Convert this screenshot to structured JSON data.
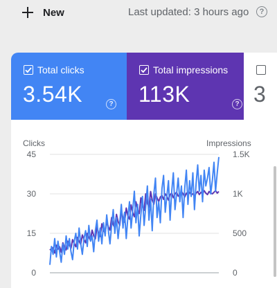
{
  "toolbar": {
    "new_label": "New",
    "last_updated": "Last updated: 3 hours ago"
  },
  "metrics": {
    "clicks": {
      "label": "Total clicks",
      "value": "3.54K",
      "color": "#4285f4",
      "checked": true
    },
    "impressions": {
      "label": "Total impressions",
      "value": "113K",
      "color": "#5e35b1",
      "checked": true
    },
    "third": {
      "value": "3",
      "checked": false
    }
  },
  "chart_data": {
    "type": "line",
    "left_axis": {
      "label": "Clicks",
      "ticks": [
        "45",
        "30",
        "15",
        "0"
      ],
      "range": [
        0,
        45
      ]
    },
    "right_axis": {
      "label": "Impressions",
      "ticks": [
        "1.5K",
        "1K",
        "500",
        "0"
      ],
      "range": [
        0,
        1500
      ]
    },
    "series": [
      {
        "color": "#4285f4",
        "axis": "left",
        "values": [
          3,
          10,
          7,
          13,
          6,
          12,
          8,
          4,
          11,
          7,
          14,
          9,
          13,
          8,
          5,
          12,
          15,
          9,
          17,
          11,
          7,
          13,
          16,
          10,
          18,
          12,
          14,
          8,
          16,
          20,
          12,
          17,
          11,
          19,
          14,
          22,
          16,
          11,
          18,
          24,
          15,
          21,
          13,
          19,
          26,
          17,
          23,
          13,
          21,
          27,
          17,
          24,
          31,
          19,
          26,
          14,
          22,
          29,
          18,
          25,
          33,
          20,
          28,
          16,
          30,
          36,
          21,
          27,
          19,
          32,
          37,
          23,
          29,
          35,
          20,
          31,
          38,
          24,
          30,
          36,
          27,
          33,
          21,
          32,
          39,
          26,
          35,
          29,
          38,
          24,
          34,
          41,
          31,
          37,
          27,
          39,
          33,
          36,
          40,
          30,
          35,
          42,
          31,
          38,
          44
        ]
      },
      {
        "color": "#5e35b1",
        "axis": "right",
        "values": [
          300,
          280,
          320,
          250,
          350,
          300,
          330,
          260,
          380,
          320,
          290,
          400,
          350,
          310,
          420,
          370,
          330,
          450,
          400,
          360,
          480,
          420,
          380,
          500,
          450,
          410,
          540,
          470,
          430,
          580,
          500,
          460,
          620,
          540,
          500,
          650,
          580,
          540,
          700,
          610,
          570,
          740,
          650,
          600,
          790,
          690,
          640,
          820,
          720,
          680,
          860,
          760,
          710,
          900,
          800,
          750,
          950,
          840,
          790,
          1000,
          880,
          830,
          1030,
          920,
          870,
          1000,
          950,
          900,
          960,
          980,
          930,
          1000,
          970,
          920,
          990,
          1010,
          950,
          1000,
          1020,
          970,
          990,
          1030,
          1000,
          960,
          1010,
          980,
          1020,
          990,
          1000,
          970,
          1010,
          1030,
          990,
          1020,
          1000,
          1040,
          1010,
          990,
          1030,
          1010,
          1000,
          1020,
          1040,
          1010,
          1030
        ]
      }
    ]
  }
}
